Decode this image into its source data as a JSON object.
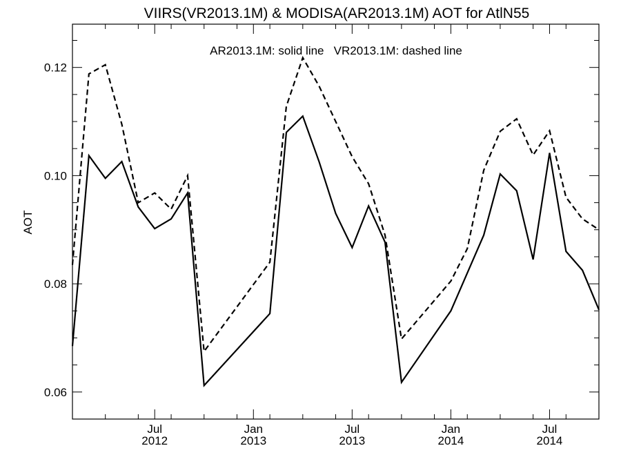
{
  "chart_data": {
    "type": "line",
    "title": "VIIRS(VR2013.1M) & MODISA(AR2013.1M)  AOT for AtlN55",
    "annotation": "AR2013.1M: solid line   VR2013.1M: dashed line",
    "xlabel": "",
    "ylabel": "AOT",
    "ylim": [
      0.055,
      0.128
    ],
    "yticks": [
      {
        "value": 0.06,
        "label": "0.06"
      },
      {
        "value": 0.08,
        "label": "0.08"
      },
      {
        "value": 0.1,
        "label": "0.10"
      },
      {
        "value": 0.12,
        "label": "0.12"
      }
    ],
    "xticks": [
      {
        "date": "2012-07",
        "month": "Jul",
        "year": "2012"
      },
      {
        "date": "2013-01",
        "month": "Jan",
        "year": "2013"
      },
      {
        "date": "2013-07",
        "month": "Jul",
        "year": "2013"
      },
      {
        "date": "2014-01",
        "month": "Jan",
        "year": "2014"
      },
      {
        "date": "2014-07",
        "month": "Jul",
        "year": "2014"
      }
    ],
    "xlim": [
      "2012-02",
      "2014-10"
    ],
    "grid": false,
    "series": [
      {
        "name": "AR2013.1M",
        "style": "solid",
        "color": "#000000",
        "points": [
          [
            "2012-02",
            0.0685
          ],
          [
            "2012-03",
            0.1037
          ],
          [
            "2012-04",
            0.0995
          ],
          [
            "2012-05",
            0.1026
          ],
          [
            "2012-06",
            0.0942
          ],
          [
            "2012-07",
            0.0902
          ],
          [
            "2012-08",
            0.092
          ],
          [
            "2012-09",
            0.0968
          ],
          [
            "2012-10",
            0.0612
          ],
          [
            "2013-02",
            0.0745
          ],
          [
            "2013-03",
            0.108
          ],
          [
            "2013-04",
            0.111
          ],
          [
            "2013-05",
            0.1025
          ],
          [
            "2013-06",
            0.093
          ],
          [
            "2013-07",
            0.0867
          ],
          [
            "2013-08",
            0.0944
          ],
          [
            "2013-09",
            0.0877
          ],
          [
            "2013-10",
            0.0618
          ],
          [
            "2014-01",
            0.075
          ],
          [
            "2014-02",
            0.082
          ],
          [
            "2014-03",
            0.089
          ],
          [
            "2014-04",
            0.1003
          ],
          [
            "2014-05",
            0.0972
          ],
          [
            "2014-06",
            0.0845
          ],
          [
            "2014-07",
            0.1042
          ],
          [
            "2014-08",
            0.086
          ],
          [
            "2014-09",
            0.0825
          ],
          [
            "2014-10",
            0.0752
          ]
        ]
      },
      {
        "name": "VR2013.1M",
        "style": "dashed",
        "color": "#000000",
        "points": [
          [
            "2012-02",
            0.0835
          ],
          [
            "2012-03",
            0.1188
          ],
          [
            "2012-04",
            0.1205
          ],
          [
            "2012-05",
            0.1095
          ],
          [
            "2012-06",
            0.095
          ],
          [
            "2012-07",
            0.0968
          ],
          [
            "2012-08",
            0.0938
          ],
          [
            "2012-09",
            0.1
          ],
          [
            "2012-10",
            0.0675
          ],
          [
            "2013-02",
            0.084
          ],
          [
            "2013-03",
            0.1128
          ],
          [
            "2013-04",
            0.1218
          ],
          [
            "2013-05",
            0.1165
          ],
          [
            "2013-06",
            0.11
          ],
          [
            "2013-07",
            0.1035
          ],
          [
            "2013-08",
            0.0985
          ],
          [
            "2013-09",
            0.089
          ],
          [
            "2013-10",
            0.0698
          ],
          [
            "2014-01",
            0.0805
          ],
          [
            "2014-02",
            0.0865
          ],
          [
            "2014-03",
            0.101
          ],
          [
            "2014-04",
            0.1082
          ],
          [
            "2014-05",
            0.1105
          ],
          [
            "2014-06",
            0.1038
          ],
          [
            "2014-07",
            0.1083
          ],
          [
            "2014-08",
            0.096
          ],
          [
            "2014-09",
            0.092
          ],
          [
            "2014-10",
            0.09
          ]
        ]
      }
    ]
  }
}
